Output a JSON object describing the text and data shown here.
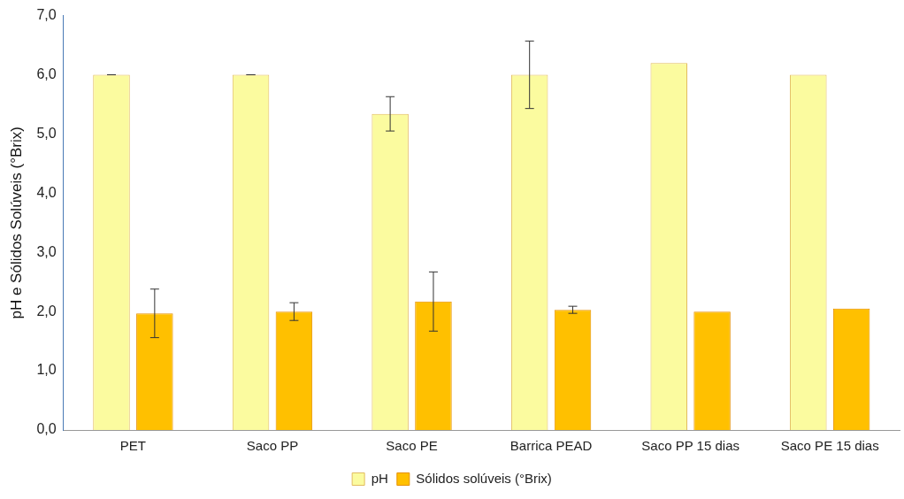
{
  "chart_data": {
    "type": "bar",
    "ylabel": "pH e Sólidos Solúveis (°Brix)",
    "categories": [
      "PET",
      "Saco PP",
      "Saco PE",
      "Barrica PEAD",
      "Saco PP 15 dias",
      "Saco PE 15 dias"
    ],
    "series": [
      {
        "name": "pH",
        "color": "#fbfb9f",
        "values": [
          6.0,
          6.0,
          5.34,
          6.0,
          6.2,
          6.0
        ],
        "errors": [
          0,
          0,
          0.29,
          0.57,
          null,
          null
        ]
      },
      {
        "name": "Sólidos solúveis (°Brix)",
        "color": "#ffc000",
        "values": [
          1.97,
          2.0,
          2.17,
          2.03,
          2.0,
          2.05
        ],
        "errors": [
          0.41,
          0.15,
          0.5,
          0.06,
          null,
          null
        ]
      }
    ],
    "ylim": [
      0,
      7
    ],
    "yticks": [
      {
        "value": 0,
        "label": "0,0"
      },
      {
        "value": 1,
        "label": "1,0"
      },
      {
        "value": 2,
        "label": "2,0"
      },
      {
        "value": 3,
        "label": "3,0"
      },
      {
        "value": 4,
        "label": "4,0"
      },
      {
        "value": 5,
        "label": "5,0"
      },
      {
        "value": 6,
        "label": "6,0"
      },
      {
        "value": 7,
        "label": "7,0"
      }
    ],
    "grid": false,
    "legend": "bottom"
  }
}
